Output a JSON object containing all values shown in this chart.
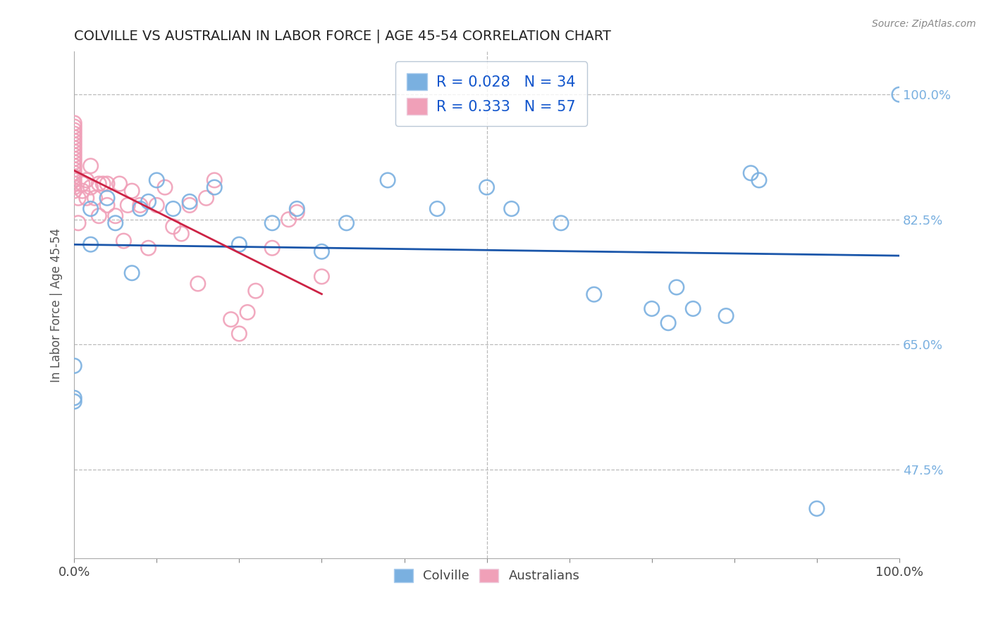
{
  "title": "COLVILLE VS AUSTRALIAN IN LABOR FORCE | AGE 45-54 CORRELATION CHART",
  "source": "Source: ZipAtlas.com",
  "ylabel": "In Labor Force | Age 45-54",
  "ytick_labels": [
    "47.5%",
    "65.0%",
    "82.5%",
    "100.0%"
  ],
  "ytick_values": [
    0.475,
    0.65,
    0.825,
    1.0
  ],
  "xlim": [
    0.0,
    1.0
  ],
  "ylim": [
    0.35,
    1.06
  ],
  "colville_R": 0.028,
  "colville_N": 34,
  "australians_R": 0.333,
  "australians_N": 57,
  "colville_color": "#7ab0e0",
  "australians_color": "#f0a0b8",
  "trend_colville_color": "#1a56aa",
  "trend_australians_color": "#cc2244",
  "colville_x": [
    0.0,
    0.0,
    0.0,
    0.02,
    0.02,
    0.04,
    0.05,
    0.07,
    0.08,
    0.09,
    0.1,
    0.12,
    0.14,
    0.17,
    0.2,
    0.24,
    0.27,
    0.3,
    0.33,
    0.38,
    0.44,
    0.5,
    0.53,
    0.59,
    0.63,
    0.7,
    0.72,
    0.73,
    0.75,
    0.79,
    0.82,
    0.83,
    0.9,
    1.0
  ],
  "colville_y": [
    0.57,
    0.62,
    0.575,
    0.84,
    0.79,
    0.855,
    0.82,
    0.75,
    0.84,
    0.85,
    0.88,
    0.84,
    0.85,
    0.87,
    0.79,
    0.82,
    0.84,
    0.78,
    0.82,
    0.88,
    0.84,
    0.87,
    0.84,
    0.82,
    0.72,
    0.7,
    0.68,
    0.73,
    0.7,
    0.69,
    0.89,
    0.88,
    0.42,
    1.0
  ],
  "australians_x": [
    0.0,
    0.0,
    0.0,
    0.0,
    0.0,
    0.0,
    0.0,
    0.0,
    0.0,
    0.0,
    0.0,
    0.0,
    0.0,
    0.0,
    0.0,
    0.0,
    0.0,
    0.0,
    0.0,
    0.0,
    0.005,
    0.005,
    0.01,
    0.01,
    0.015,
    0.015,
    0.02,
    0.02,
    0.025,
    0.03,
    0.03,
    0.035,
    0.04,
    0.04,
    0.05,
    0.055,
    0.06,
    0.065,
    0.07,
    0.08,
    0.09,
    0.1,
    0.11,
    0.12,
    0.13,
    0.14,
    0.15,
    0.16,
    0.17,
    0.19,
    0.2,
    0.21,
    0.22,
    0.24,
    0.26,
    0.27,
    0.3
  ],
  "australians_y": [
    0.865,
    0.87,
    0.875,
    0.88,
    0.885,
    0.89,
    0.895,
    0.9,
    0.905,
    0.91,
    0.915,
    0.92,
    0.925,
    0.93,
    0.935,
    0.94,
    0.945,
    0.95,
    0.955,
    0.96,
    0.82,
    0.855,
    0.865,
    0.875,
    0.855,
    0.88,
    0.87,
    0.9,
    0.855,
    0.83,
    0.875,
    0.875,
    0.845,
    0.875,
    0.83,
    0.875,
    0.795,
    0.845,
    0.865,
    0.845,
    0.785,
    0.845,
    0.87,
    0.815,
    0.805,
    0.845,
    0.735,
    0.855,
    0.88,
    0.685,
    0.665,
    0.695,
    0.725,
    0.785,
    0.825,
    0.835,
    0.745
  ],
  "background_color": "#ffffff",
  "grid_color": "#bbbbbb",
  "title_color": "#222222",
  "xtick_positions": [
    0.0,
    0.1,
    0.2,
    0.3,
    0.4,
    0.5,
    0.6,
    0.7,
    0.8,
    0.9,
    1.0
  ]
}
